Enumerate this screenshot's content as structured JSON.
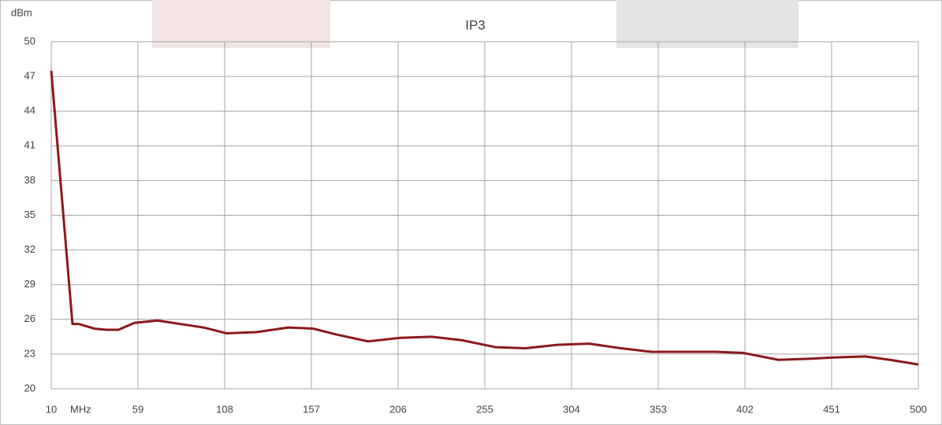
{
  "chart_data": {
    "type": "line",
    "title": "IP3",
    "y_label": "dBm",
    "x_label": "MHz",
    "x": [
      10,
      22,
      25.6,
      34.5,
      41,
      48,
      57,
      70,
      83,
      96,
      109,
      126,
      144,
      158,
      171,
      189,
      207,
      225,
      242,
      261,
      278,
      296,
      314,
      332,
      349,
      367,
      385,
      401,
      421,
      439,
      452,
      470,
      484,
      500
    ],
    "series": [
      {
        "name": "IP3",
        "color": "#8b1a1a",
        "values": [
          47.5,
          25.6,
          25.6,
          25.2,
          25.1,
          25.1,
          25.7,
          25.9,
          25.6,
          25.3,
          24.8,
          24.9,
          25.3,
          25.2,
          24.7,
          24.1,
          24.4,
          24.5,
          24.2,
          23.6,
          23.5,
          23.8,
          23.9,
          23.5,
          23.2,
          23.2,
          23.2,
          23.1,
          22.5,
          22.6,
          22.7,
          22.8,
          22.5,
          22.1
        ]
      }
    ],
    "xlim": [
      10,
      500
    ],
    "xticks": [
      10,
      59,
      108,
      157,
      206,
      255,
      304,
      353,
      402,
      451,
      500
    ],
    "ylim": [
      20,
      50
    ],
    "yticks": [
      20,
      23,
      26,
      29,
      32,
      35,
      38,
      41,
      44,
      47,
      50
    ],
    "grid": true
  }
}
